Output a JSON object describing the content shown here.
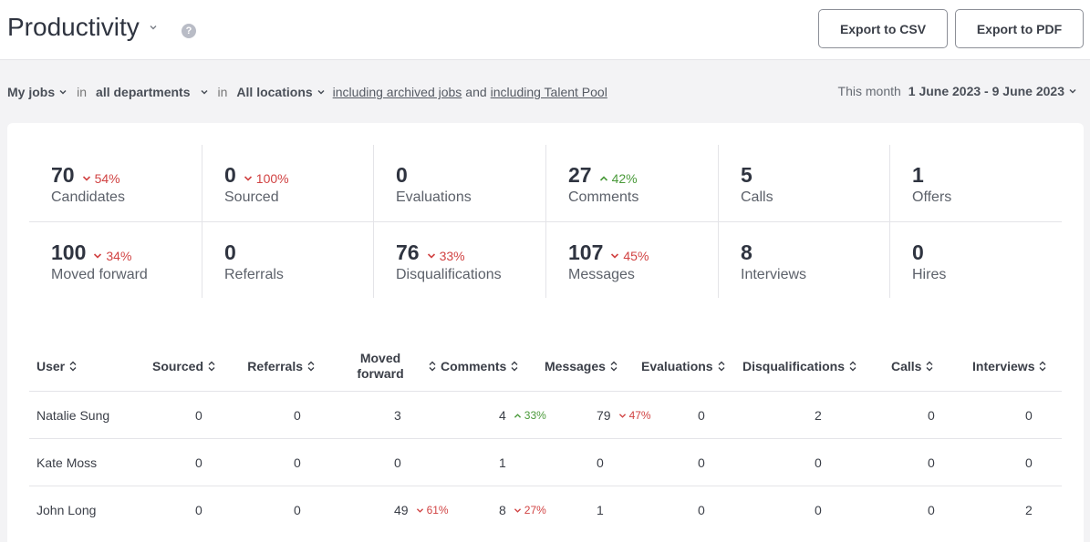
{
  "header": {
    "title": "Productivity",
    "help_icon": "help-icon",
    "export_csv_label": "Export to CSV",
    "export_pdf_label": "Export to PDF"
  },
  "filters": {
    "jobs": "My jobs",
    "in1": "in",
    "departments": "all departments",
    "in2": "in",
    "locations": "All locations",
    "archived": "including archived jobs",
    "and": "and",
    "talent_pool": "including Talent Pool",
    "period_label": "This month",
    "period_range": "1 June 2023 - 9 June 2023"
  },
  "stats": [
    {
      "value": "70",
      "label": "Candidates",
      "delta": "54%",
      "trend": "down"
    },
    {
      "value": "0",
      "label": "Sourced",
      "delta": "100%",
      "trend": "down"
    },
    {
      "value": "0",
      "label": "Evaluations",
      "delta": "",
      "trend": ""
    },
    {
      "value": "27",
      "label": "Comments",
      "delta": "42%",
      "trend": "up"
    },
    {
      "value": "5",
      "label": "Calls",
      "delta": "",
      "trend": ""
    },
    {
      "value": "1",
      "label": "Offers",
      "delta": "",
      "trend": ""
    },
    {
      "value": "100",
      "label": "Moved forward",
      "delta": "34%",
      "trend": "down"
    },
    {
      "value": "0",
      "label": "Referrals",
      "delta": "",
      "trend": ""
    },
    {
      "value": "76",
      "label": "Disqualifications",
      "delta": "33%",
      "trend": "down"
    },
    {
      "value": "107",
      "label": "Messages",
      "delta": "45%",
      "trend": "down"
    },
    {
      "value": "8",
      "label": "Interviews",
      "delta": "",
      "trend": ""
    },
    {
      "value": "0",
      "label": "Hires",
      "delta": "",
      "trend": ""
    }
  ],
  "table": {
    "columns": [
      "User",
      "Sourced",
      "Referrals",
      "Moved forward",
      "Comments",
      "Messages",
      "Evaluations",
      "Disqualifications",
      "Calls",
      "Interviews"
    ],
    "moved_forward_line1": "Moved",
    "moved_forward_line2": "forward",
    "rows": [
      {
        "user": "Natalie Sung",
        "sourced": "0",
        "referrals": "0",
        "moved": "3",
        "moved_delta": "",
        "moved_trend": "",
        "comments": "4",
        "comments_delta": "33%",
        "comments_trend": "up",
        "messages": "79",
        "messages_delta": "47%",
        "messages_trend": "down",
        "evaluations": "0",
        "disqualifications": "2",
        "calls": "0",
        "interviews": "0"
      },
      {
        "user": "Kate Moss",
        "sourced": "0",
        "referrals": "0",
        "moved": "0",
        "moved_delta": "",
        "moved_trend": "",
        "comments": "1",
        "comments_delta": "",
        "comments_trend": "",
        "messages": "0",
        "messages_delta": "",
        "messages_trend": "",
        "evaluations": "0",
        "disqualifications": "0",
        "calls": "0",
        "interviews": "0"
      },
      {
        "user": "John Long",
        "sourced": "0",
        "referrals": "0",
        "moved": "49",
        "moved_delta": "61%",
        "moved_trend": "down",
        "comments": "8",
        "comments_delta": "27%",
        "comments_trend": "down",
        "messages": "1",
        "messages_delta": "",
        "messages_trend": "",
        "evaluations": "0",
        "disqualifications": "0",
        "calls": "0",
        "interviews": "2"
      }
    ]
  },
  "colors": {
    "down": "#d14343",
    "up": "#4a9a3a",
    "border": "#e4e4e8"
  }
}
